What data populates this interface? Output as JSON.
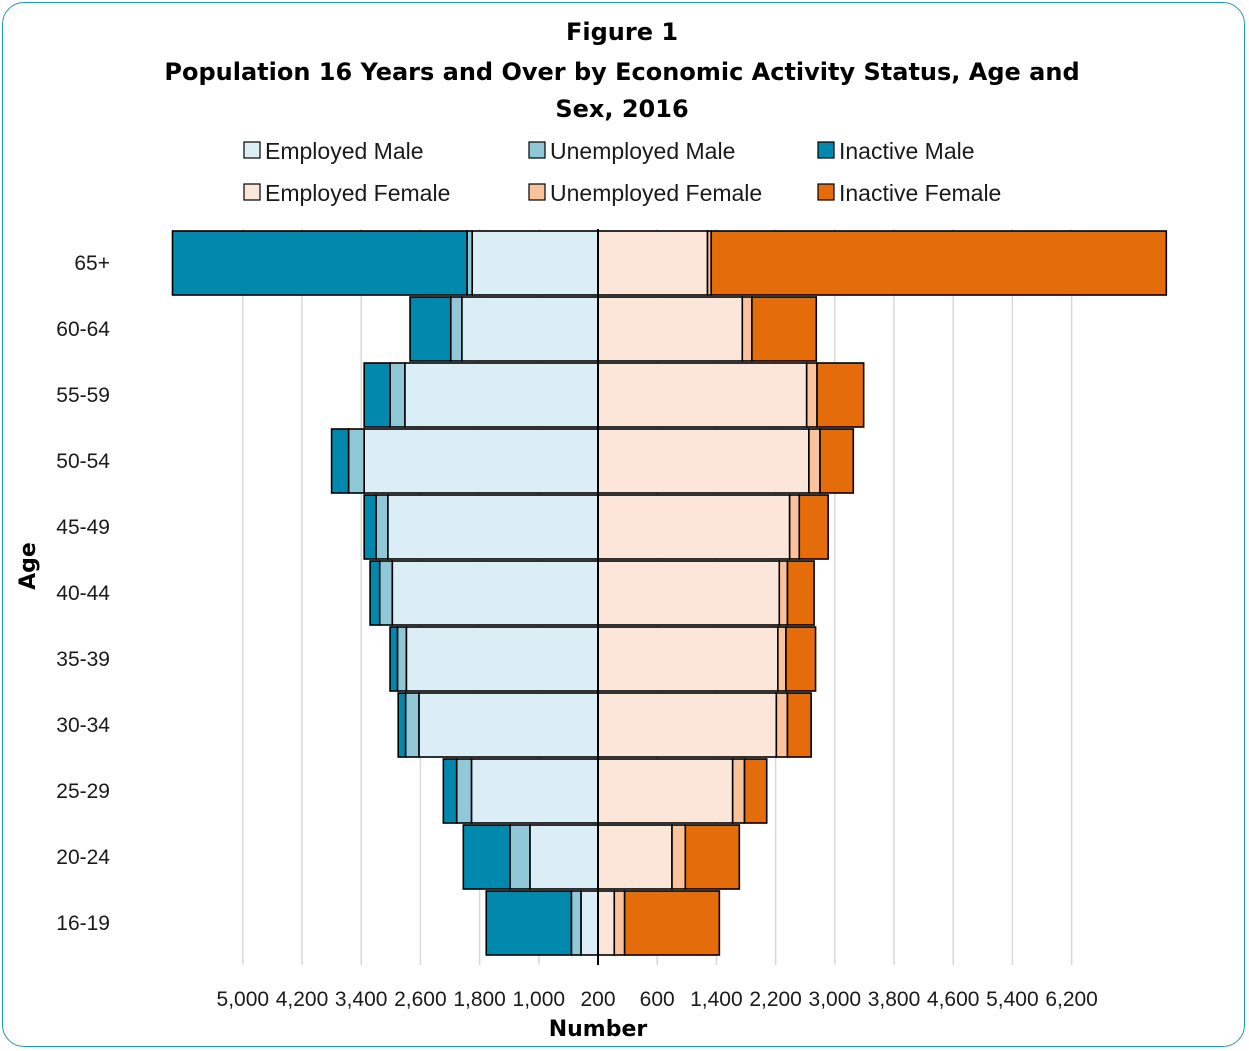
{
  "chart_data": {
    "type": "bar",
    "orientation": "horizontal-population-pyramid",
    "title_lines": [
      "Figure 1",
      "Population 16 Years and Over by Economic Activity Status, Age and",
      "Sex, 2016"
    ],
    "xlabel": "Number",
    "ylabel": "Age",
    "categories": [
      "16-19",
      "20-24",
      "25-29",
      "30-34",
      "35-39",
      "40-44",
      "45-49",
      "50-54",
      "55-59",
      "60-64",
      "65+"
    ],
    "x_tick_labels": [
      "5,000",
      "4,200",
      "3,400",
      "2,600",
      "1,800",
      "1,000",
      "200",
      "600",
      "1,400",
      "2,200",
      "3,000",
      "3,800",
      "4,600",
      "5,400",
      "6,200"
    ],
    "grid": true,
    "legend_position": "top",
    "series": [
      {
        "name": "Employed Male",
        "side": "left",
        "color": "#dceef5",
        "values": [
          230,
          920,
          1710,
          2420,
          2590,
          2780,
          2840,
          3160,
          2610,
          1840,
          1700
        ]
      },
      {
        "name": "Unemployed Male",
        "side": "left",
        "color": "#91c8d8",
        "values": [
          130,
          270,
          200,
          180,
          120,
          170,
          160,
          210,
          200,
          150,
          70
        ]
      },
      {
        "name": "Inactive Male",
        "side": "left",
        "color": "#0088ad",
        "values": [
          1150,
          630,
          180,
          100,
          100,
          130,
          160,
          230,
          350,
          550,
          3980
        ]
      },
      {
        "name": "Employed Female",
        "side": "right",
        "color": "#fce6d9",
        "values": [
          220,
          1000,
          1820,
          2410,
          2430,
          2450,
          2590,
          2850,
          2820,
          1950,
          1480
        ]
      },
      {
        "name": "Unemployed Female",
        "side": "right",
        "color": "#fbc39b",
        "values": [
          140,
          180,
          160,
          150,
          110,
          110,
          130,
          150,
          140,
          130,
          50
        ]
      },
      {
        "name": "Inactive Female",
        "side": "right",
        "color": "#e46c0a",
        "values": [
          1280,
          730,
          300,
          320,
          400,
          360,
          390,
          450,
          630,
          870,
          6150
        ]
      }
    ]
  }
}
